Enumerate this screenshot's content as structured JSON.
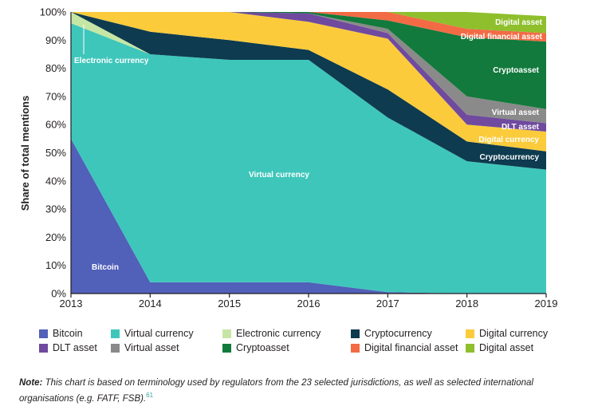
{
  "chart_data": {
    "type": "area",
    "stacked": true,
    "normalized": true,
    "x": [
      2013,
      2014,
      2015,
      2016,
      2017,
      2018,
      2019
    ],
    "ylabel": "Share of total mentions",
    "yticks": [
      "0%",
      "10%",
      "20%",
      "30%",
      "40%",
      "50%",
      "60%",
      "70%",
      "80%",
      "90%",
      "100%"
    ],
    "ylim": [
      0,
      100
    ],
    "grid": false,
    "legend_position": "bottom",
    "series": [
      {
        "name": "Bitcoin",
        "color": "#5160b8",
        "label_color": "#ffffff",
        "values": [
          55,
          4,
          4,
          4,
          0.5,
          0,
          0
        ]
      },
      {
        "name": "Virtual currency",
        "color": "#3fc6bb",
        "values": [
          41,
          81,
          79,
          79,
          62,
          47,
          44
        ]
      },
      {
        "name": "Electronic currency",
        "color": "#c6e6a5",
        "values": [
          4,
          0,
          0,
          0,
          0,
          0,
          0
        ]
      },
      {
        "name": "Cryptocurrency",
        "color": "#0e3b4f",
        "values": [
          0,
          8,
          7,
          3.5,
          10,
          7,
          6.5
        ]
      },
      {
        "name": "Digital currency",
        "color": "#fbcb3c",
        "values": [
          0,
          7,
          10,
          10,
          18,
          6,
          7
        ]
      },
      {
        "name": "DLT asset",
        "color": "#6f4a9e",
        "values": [
          0,
          0,
          0,
          3,
          2,
          3.5,
          3
        ]
      },
      {
        "name": "Virtual asset",
        "color": "#8a8a8a",
        "values": [
          0,
          0,
          0,
          0,
          1.5,
          6.5,
          5
        ]
      },
      {
        "name": "Cryptoasset",
        "color": "#127a3c",
        "values": [
          0,
          0,
          0,
          0.5,
          3,
          21,
          24
        ]
      },
      {
        "name": "Digital financial asset",
        "color": "#f26b45",
        "values": [
          0,
          0,
          0,
          0,
          3,
          3,
          3
        ]
      },
      {
        "name": "Digital asset",
        "color": "#8fbf2d",
        "values": [
          0,
          0,
          0,
          0,
          0,
          6,
          6
        ]
      }
    ],
    "area_labels": [
      {
        "text": "Bitcoin",
        "series": "Bitcoin"
      },
      {
        "text": "Virtual currency",
        "series": "Virtual currency"
      },
      {
        "text": "Electronic currency",
        "series": "Electronic currency"
      },
      {
        "text": "Cryptocurrency",
        "series": "Cryptocurrency"
      },
      {
        "text": "Digital currency",
        "series": "Digital currency"
      },
      {
        "text": "DLT asset",
        "series": "DLT asset"
      },
      {
        "text": "Virtual asset",
        "series": "Virtual asset"
      },
      {
        "text": "Cryptoasset",
        "series": "Cryptoasset"
      },
      {
        "text": "Digital financial asset",
        "series": "Digital financial asset"
      },
      {
        "text": "Digital asset",
        "series": "Digital asset"
      }
    ]
  },
  "legend": [
    {
      "label": "Bitcoin",
      "color": "#5160b8"
    },
    {
      "label": "Virtual currency",
      "color": "#3fc6bb"
    },
    {
      "label": "Electronic currency",
      "color": "#c6e6a5"
    },
    {
      "label": "Cryptocurrency",
      "color": "#0e3b4f"
    },
    {
      "label": "Digital currency",
      "color": "#fbcb3c"
    },
    {
      "label": "DLT asset",
      "color": "#6f4a9e"
    },
    {
      "label": "Virtual asset",
      "color": "#8a8a8a"
    },
    {
      "label": "Cryptoasset",
      "color": "#127a3c"
    },
    {
      "label": "Digital financial asset",
      "color": "#f26b45"
    },
    {
      "label": "Digital asset",
      "color": "#8fbf2d"
    }
  ],
  "note": {
    "prefix": "Note:",
    "text": " This chart is based on terminology used by regulators from the 23 selected jurisdictions, as well as selected international organisations (e.g. FATF, FSB).",
    "footnote": "61"
  }
}
